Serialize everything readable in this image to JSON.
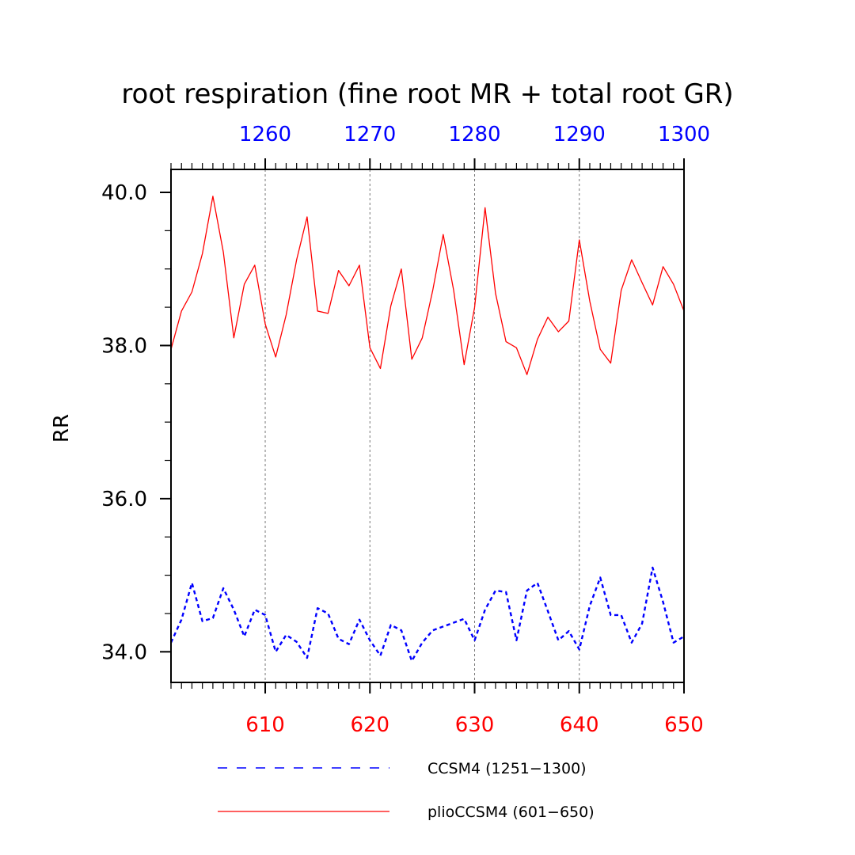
{
  "chart_data": {
    "type": "line",
    "title": "root respiration (fine root MR + total root GR)",
    "ylabel": "RR",
    "xlabel": "",
    "xlim": [
      601,
      650
    ],
    "ylim": [
      33.6,
      40.3
    ],
    "grid": "vertical-dashed-at-major-ticks",
    "legend_position": "bottom",
    "bottom_axis": {
      "color": "#ff0000",
      "ticks": [
        610,
        620,
        630,
        640,
        650
      ],
      "tick_labels": [
        "610",
        "620",
        "630",
        "640",
        "650"
      ]
    },
    "top_axis": {
      "color": "#0000ff",
      "ticks": [
        1260,
        1270,
        1280,
        1290,
        1300
      ],
      "tick_labels": [
        "1260",
        "1270",
        "1280",
        "1290",
        "1300"
      ],
      "offset": 650
    },
    "left_axis": {
      "ticks": [
        34,
        36,
        38,
        40
      ],
      "tick_labels": [
        "34.0",
        "36.0",
        "38.0",
        "40.0"
      ],
      "minor_step": 0.5
    },
    "x": [
      601,
      602,
      603,
      604,
      605,
      606,
      607,
      608,
      609,
      610,
      611,
      612,
      613,
      614,
      615,
      616,
      617,
      618,
      619,
      620,
      621,
      622,
      623,
      624,
      625,
      626,
      627,
      628,
      629,
      630,
      631,
      632,
      633,
      634,
      635,
      636,
      637,
      638,
      639,
      640,
      641,
      642,
      643,
      644,
      645,
      646,
      647,
      648,
      649,
      650
    ],
    "series": [
      {
        "name": "CCSM4 (1251−1300)",
        "color": "#0000ff",
        "dash": "dashed",
        "values": [
          34.12,
          34.42,
          34.9,
          34.4,
          34.44,
          34.83,
          34.55,
          34.2,
          34.55,
          34.48,
          34.0,
          34.22,
          34.13,
          33.92,
          34.57,
          34.5,
          34.17,
          34.1,
          34.42,
          34.15,
          33.95,
          34.35,
          34.28,
          33.88,
          34.12,
          34.28,
          34.33,
          34.38,
          34.43,
          34.15,
          34.55,
          34.8,
          34.78,
          34.15,
          34.8,
          34.9,
          34.53,
          34.15,
          34.27,
          34.03,
          34.6,
          34.97,
          34.48,
          34.48,
          34.12,
          34.37,
          35.1,
          34.65,
          34.12,
          34.2
        ]
      },
      {
        "name": "plioCCSM4 (601−650)",
        "color": "#ff0000",
        "dash": "solid",
        "values": [
          37.95,
          38.45,
          38.7,
          39.2,
          39.95,
          39.22,
          38.1,
          38.8,
          39.05,
          38.28,
          37.85,
          38.4,
          39.12,
          39.68,
          38.45,
          38.42,
          38.98,
          38.78,
          39.05,
          37.97,
          37.7,
          38.52,
          39.0,
          37.82,
          38.1,
          38.72,
          39.45,
          38.72,
          37.75,
          38.5,
          39.8,
          38.68,
          38.05,
          37.97,
          37.62,
          38.08,
          38.37,
          38.18,
          38.32,
          39.38,
          38.58,
          37.95,
          37.77,
          38.72,
          39.12,
          38.82,
          38.53,
          39.03,
          38.8,
          38.45
        ]
      }
    ]
  }
}
